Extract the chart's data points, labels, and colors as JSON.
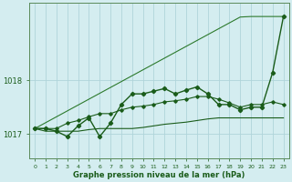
{
  "title": "Graphe pression niveau de la mer (hPa)",
  "xlabel_ticks": [
    0,
    1,
    2,
    3,
    4,
    5,
    6,
    7,
    8,
    9,
    10,
    11,
    12,
    13,
    14,
    15,
    16,
    17,
    18,
    19,
    20,
    21,
    22,
    23
  ],
  "ylim": [
    1016.55,
    1019.45
  ],
  "yticks": [
    1017,
    1018
  ],
  "background_color": "#d4edf0",
  "grid_color": "#b0d4da",
  "line_color_dark": "#1a5c1a",
  "line_color_med": "#2d7a2d",
  "series_straight": [
    1017.1,
    1017.21,
    1017.32,
    1017.43,
    1017.54,
    1017.65,
    1017.76,
    1017.87,
    1017.98,
    1018.09,
    1018.2,
    1018.31,
    1018.42,
    1018.53,
    1018.64,
    1018.75,
    1018.86,
    1018.97,
    1019.08,
    1019.19,
    1019.2,
    1019.2,
    1019.2,
    1019.2
  ],
  "series_flat": [
    1017.1,
    1017.05,
    1017.05,
    1017.05,
    1017.05,
    1017.08,
    1017.1,
    1017.1,
    1017.1,
    1017.1,
    1017.12,
    1017.15,
    1017.18,
    1017.2,
    1017.22,
    1017.25,
    1017.28,
    1017.3,
    1017.3,
    1017.3,
    1017.3,
    1017.3,
    1017.3,
    1017.3
  ],
  "series_jagged": [
    1017.1,
    1017.1,
    1017.05,
    1016.95,
    1017.15,
    1017.3,
    1016.95,
    1017.2,
    1017.55,
    1017.75,
    1017.75,
    1017.8,
    1017.85,
    1017.75,
    1017.82,
    1017.88,
    1017.75,
    1017.55,
    1017.55,
    1017.45,
    1017.5,
    1017.5,
    1018.15,
    1019.2
  ],
  "series_rising": [
    1017.1,
    1017.1,
    1017.1,
    1017.2,
    1017.25,
    1017.32,
    1017.38,
    1017.38,
    1017.45,
    1017.5,
    1017.52,
    1017.55,
    1017.6,
    1017.62,
    1017.65,
    1017.7,
    1017.7,
    1017.65,
    1017.58,
    1017.5,
    1017.55,
    1017.55,
    1017.6,
    1017.55
  ]
}
